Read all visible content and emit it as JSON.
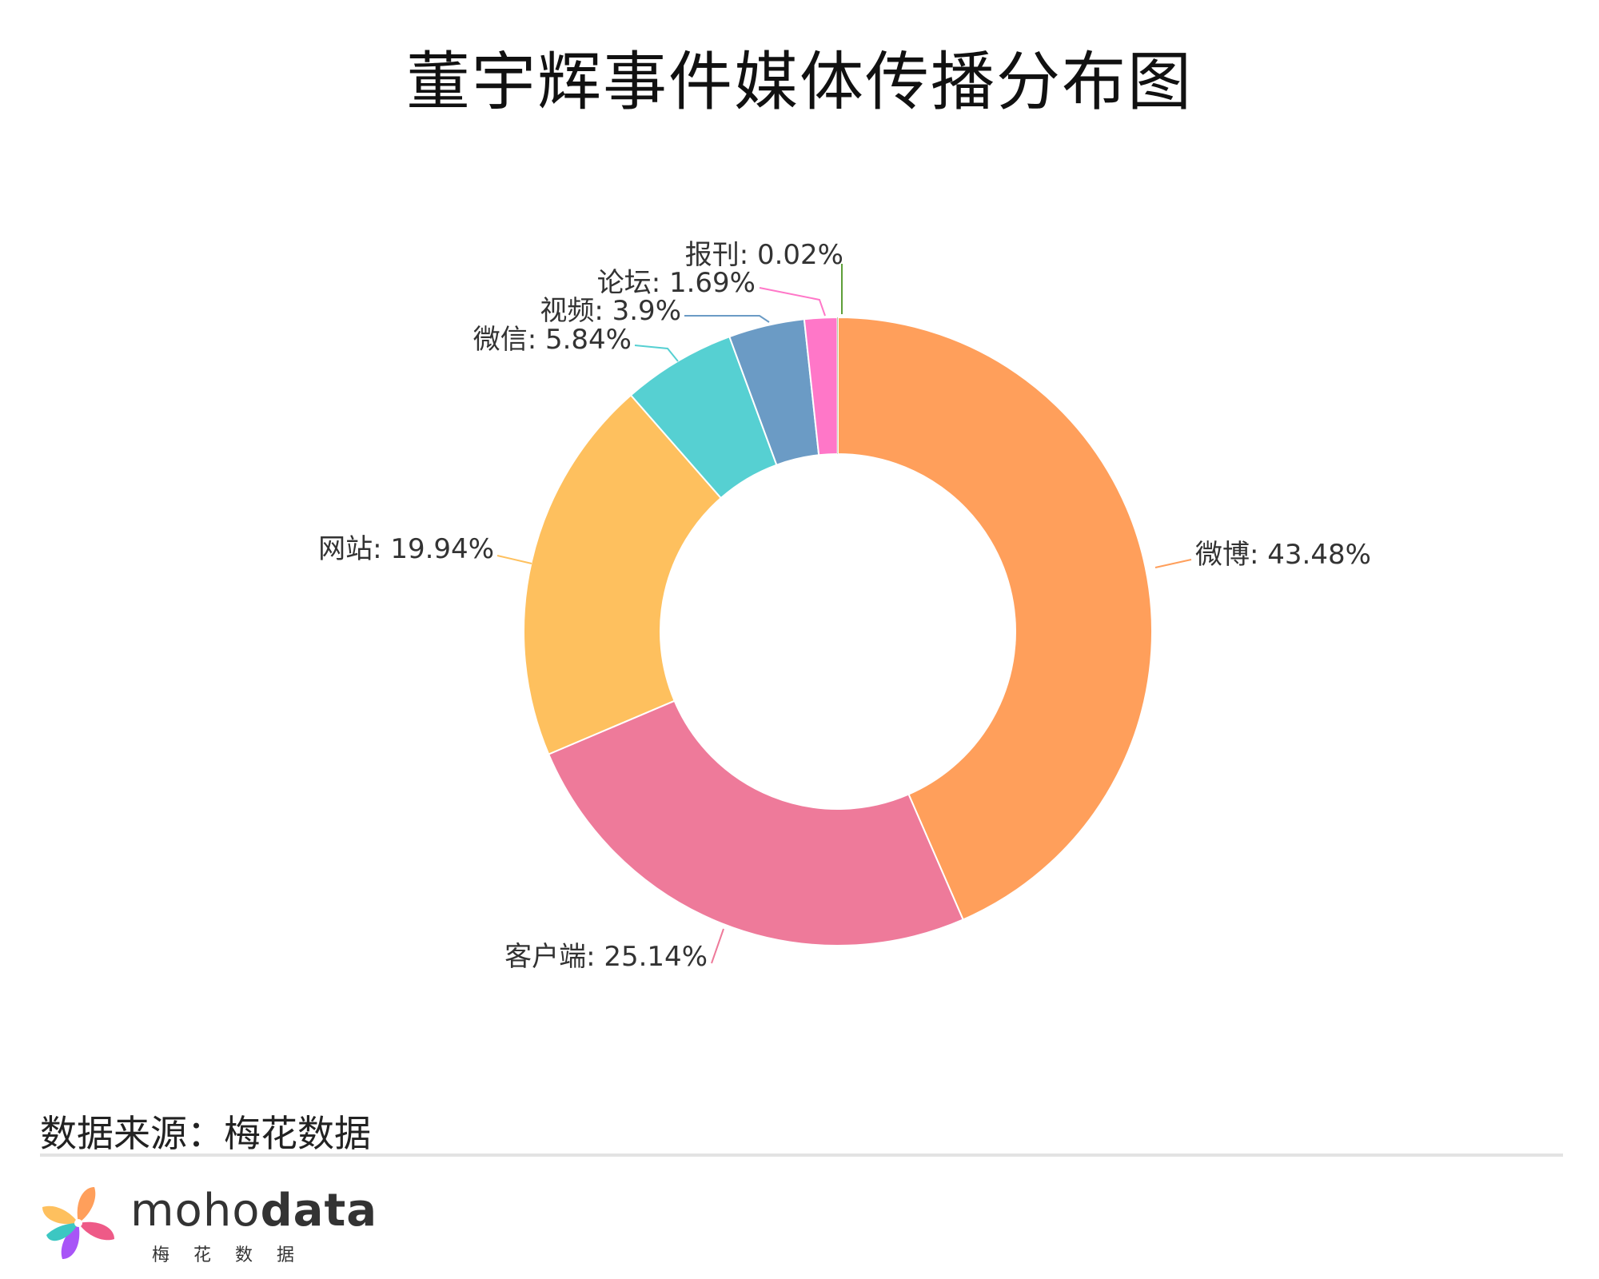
{
  "title": "董宇辉事件媒体传播分布图",
  "source": "数据来源：梅花数据",
  "brand": {
    "name_light": "moho",
    "name_bold": "data",
    "sub": "梅花数据"
  },
  "chart_data": {
    "type": "pie",
    "title": "董宇辉事件媒体传播分布图",
    "donut": true,
    "slices": [
      {
        "label": "微博",
        "value": 43.48,
        "display": "微博: 43.48%",
        "color": "#FF9F5B"
      },
      {
        "label": "客户端",
        "value": 25.14,
        "display": "客户端: 25.14%",
        "color": "#EE7A9A"
      },
      {
        "label": "网站",
        "value": 19.94,
        "display": "网站: 19.94%",
        "color": "#FEC05E"
      },
      {
        "label": "微信",
        "value": 5.84,
        "display": "微信: 5.84%",
        "color": "#56D0D2"
      },
      {
        "label": "视频",
        "value": 3.9,
        "display": "视频: 3.9%",
        "color": "#6B9BC5"
      },
      {
        "label": "论坛",
        "value": 1.69,
        "display": "论坛: 1.69%",
        "color": "#FF77C8"
      },
      {
        "label": "报刊",
        "value": 0.02,
        "display": "报刊: 0.02%",
        "color": "#5E9F39"
      }
    ]
  }
}
